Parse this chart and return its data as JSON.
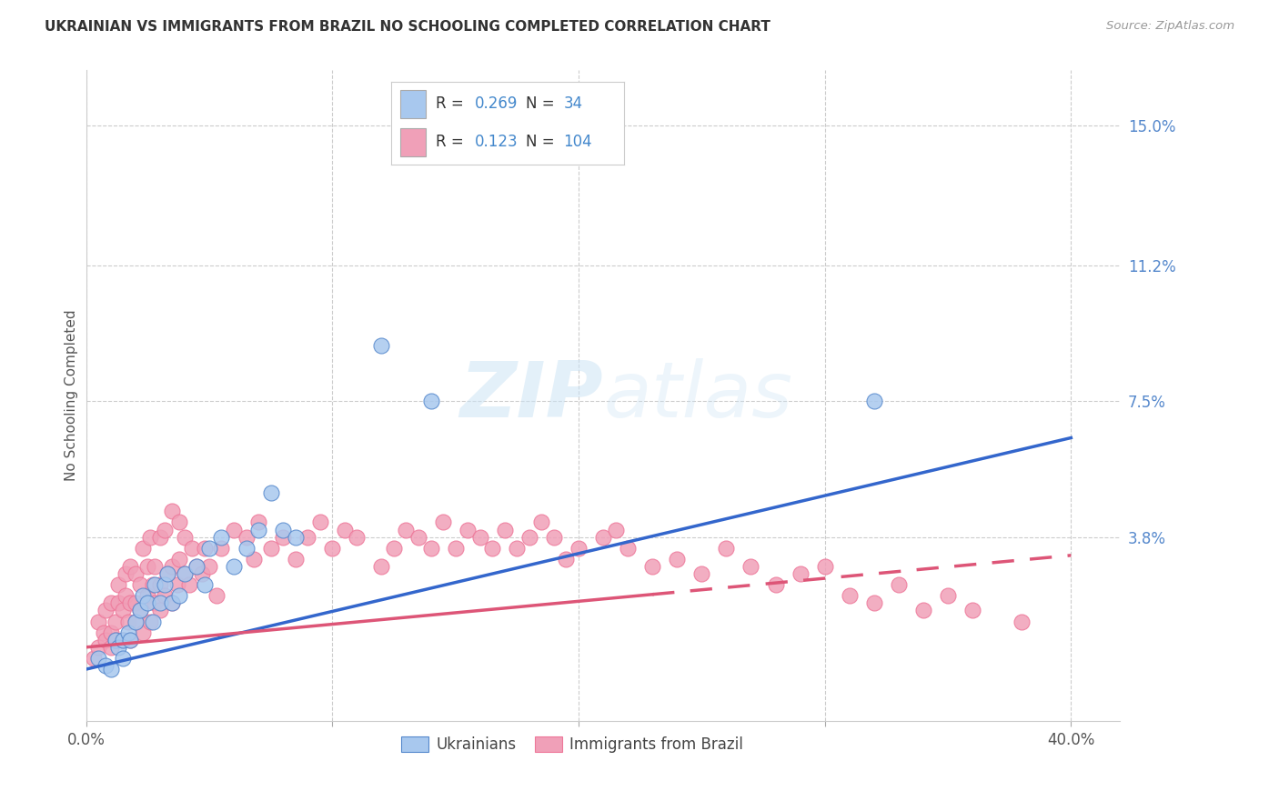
{
  "title": "UKRAINIAN VS IMMIGRANTS FROM BRAZIL NO SCHOOLING COMPLETED CORRELATION CHART",
  "source": "Source: ZipAtlas.com",
  "ylabel": "No Schooling Completed",
  "ytick_vals": [
    0.15,
    0.112,
    0.075,
    0.038
  ],
  "ytick_labels": [
    "15.0%",
    "11.2%",
    "7.5%",
    "3.8%"
  ],
  "xtick_vals": [
    0.0,
    0.1,
    0.2,
    0.3,
    0.4
  ],
  "xtick_labels": [
    "0.0%",
    "",
    "",
    "",
    "40.0%"
  ],
  "xlim": [
    0.0,
    0.42
  ],
  "ylim": [
    -0.012,
    0.165
  ],
  "watermark": "ZIPatlas",
  "blue_color": "#a8c8ee",
  "pink_color": "#f0a0b8",
  "trend_blue_color": "#3366cc",
  "trend_pink_color": "#dd5577",
  "blue_color_dark": "#5588cc",
  "pink_color_dark": "#ee7799",
  "blue_r": "0.269",
  "blue_n": "34",
  "pink_r": "0.123",
  "pink_n": "104",
  "blue_trend_x0": 0.0,
  "blue_trend_y0": 0.002,
  "blue_trend_x1": 0.4,
  "blue_trend_y1": 0.065,
  "pink_trend_x0": 0.0,
  "pink_trend_y0": 0.008,
  "pink_trend_x1": 0.4,
  "pink_trend_y1": 0.033,
  "scatter_blue_x": [
    0.005,
    0.008,
    0.01,
    0.012,
    0.013,
    0.015,
    0.015,
    0.017,
    0.018,
    0.02,
    0.022,
    0.023,
    0.025,
    0.027,
    0.028,
    0.03,
    0.032,
    0.033,
    0.035,
    0.038,
    0.04,
    0.045,
    0.048,
    0.05,
    0.055,
    0.06,
    0.065,
    0.07,
    0.075,
    0.08,
    0.085,
    0.12,
    0.14,
    0.32
  ],
  "scatter_blue_y": [
    0.005,
    0.003,
    0.002,
    0.01,
    0.008,
    0.005,
    0.01,
    0.012,
    0.01,
    0.015,
    0.018,
    0.022,
    0.02,
    0.015,
    0.025,
    0.02,
    0.025,
    0.028,
    0.02,
    0.022,
    0.028,
    0.03,
    0.025,
    0.035,
    0.038,
    0.03,
    0.035,
    0.04,
    0.05,
    0.04,
    0.038,
    0.09,
    0.075,
    0.075
  ],
  "scatter_pink_x": [
    0.003,
    0.005,
    0.005,
    0.007,
    0.008,
    0.008,
    0.01,
    0.01,
    0.01,
    0.012,
    0.012,
    0.013,
    0.013,
    0.015,
    0.015,
    0.016,
    0.016,
    0.017,
    0.018,
    0.018,
    0.018,
    0.02,
    0.02,
    0.02,
    0.022,
    0.022,
    0.023,
    0.023,
    0.025,
    0.025,
    0.026,
    0.026,
    0.027,
    0.028,
    0.028,
    0.03,
    0.03,
    0.03,
    0.032,
    0.032,
    0.033,
    0.035,
    0.035,
    0.035,
    0.037,
    0.038,
    0.038,
    0.04,
    0.04,
    0.042,
    0.043,
    0.045,
    0.047,
    0.048,
    0.05,
    0.053,
    0.055,
    0.06,
    0.065,
    0.068,
    0.07,
    0.075,
    0.08,
    0.085,
    0.09,
    0.095,
    0.1,
    0.105,
    0.11,
    0.12,
    0.125,
    0.13,
    0.135,
    0.14,
    0.145,
    0.15,
    0.155,
    0.16,
    0.165,
    0.17,
    0.175,
    0.18,
    0.185,
    0.19,
    0.195,
    0.2,
    0.21,
    0.215,
    0.22,
    0.23,
    0.24,
    0.25,
    0.26,
    0.27,
    0.28,
    0.29,
    0.3,
    0.31,
    0.32,
    0.33,
    0.34,
    0.35,
    0.36,
    0.38
  ],
  "scatter_pink_y": [
    0.005,
    0.008,
    0.015,
    0.012,
    0.01,
    0.018,
    0.008,
    0.012,
    0.02,
    0.01,
    0.015,
    0.02,
    0.025,
    0.01,
    0.018,
    0.022,
    0.028,
    0.015,
    0.01,
    0.02,
    0.03,
    0.015,
    0.02,
    0.028,
    0.018,
    0.025,
    0.012,
    0.035,
    0.022,
    0.03,
    0.015,
    0.038,
    0.025,
    0.02,
    0.03,
    0.018,
    0.025,
    0.038,
    0.022,
    0.04,
    0.028,
    0.02,
    0.03,
    0.045,
    0.025,
    0.032,
    0.042,
    0.028,
    0.038,
    0.025,
    0.035,
    0.03,
    0.028,
    0.035,
    0.03,
    0.022,
    0.035,
    0.04,
    0.038,
    0.032,
    0.042,
    0.035,
    0.038,
    0.032,
    0.038,
    0.042,
    0.035,
    0.04,
    0.038,
    0.03,
    0.035,
    0.04,
    0.038,
    0.035,
    0.042,
    0.035,
    0.04,
    0.038,
    0.035,
    0.04,
    0.035,
    0.038,
    0.042,
    0.038,
    0.032,
    0.035,
    0.038,
    0.04,
    0.035,
    0.03,
    0.032,
    0.028,
    0.035,
    0.03,
    0.025,
    0.028,
    0.03,
    0.022,
    0.02,
    0.025,
    0.018,
    0.022,
    0.018,
    0.015
  ]
}
